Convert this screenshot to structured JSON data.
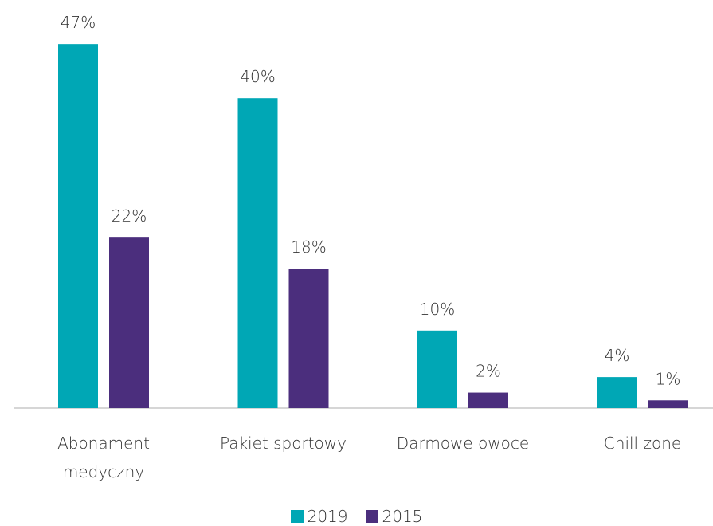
{
  "chart_data": {
    "type": "bar",
    "categories": [
      "Abonament medyczny",
      "Pakiet sportowy",
      "Darmowe owoce",
      "Chill zone"
    ],
    "series": [
      {
        "name": "2019",
        "color": "#00a7b5",
        "values": [
          47,
          40,
          10,
          4
        ],
        "value_labels": [
          "47%",
          "40%",
          "10%",
          "4%"
        ]
      },
      {
        "name": "2015",
        "color": "#4b2e7d",
        "values": [
          22,
          18,
          2,
          1
        ],
        "value_labels": [
          "22%",
          "18%",
          "2%",
          "1%"
        ]
      }
    ]
  }
}
